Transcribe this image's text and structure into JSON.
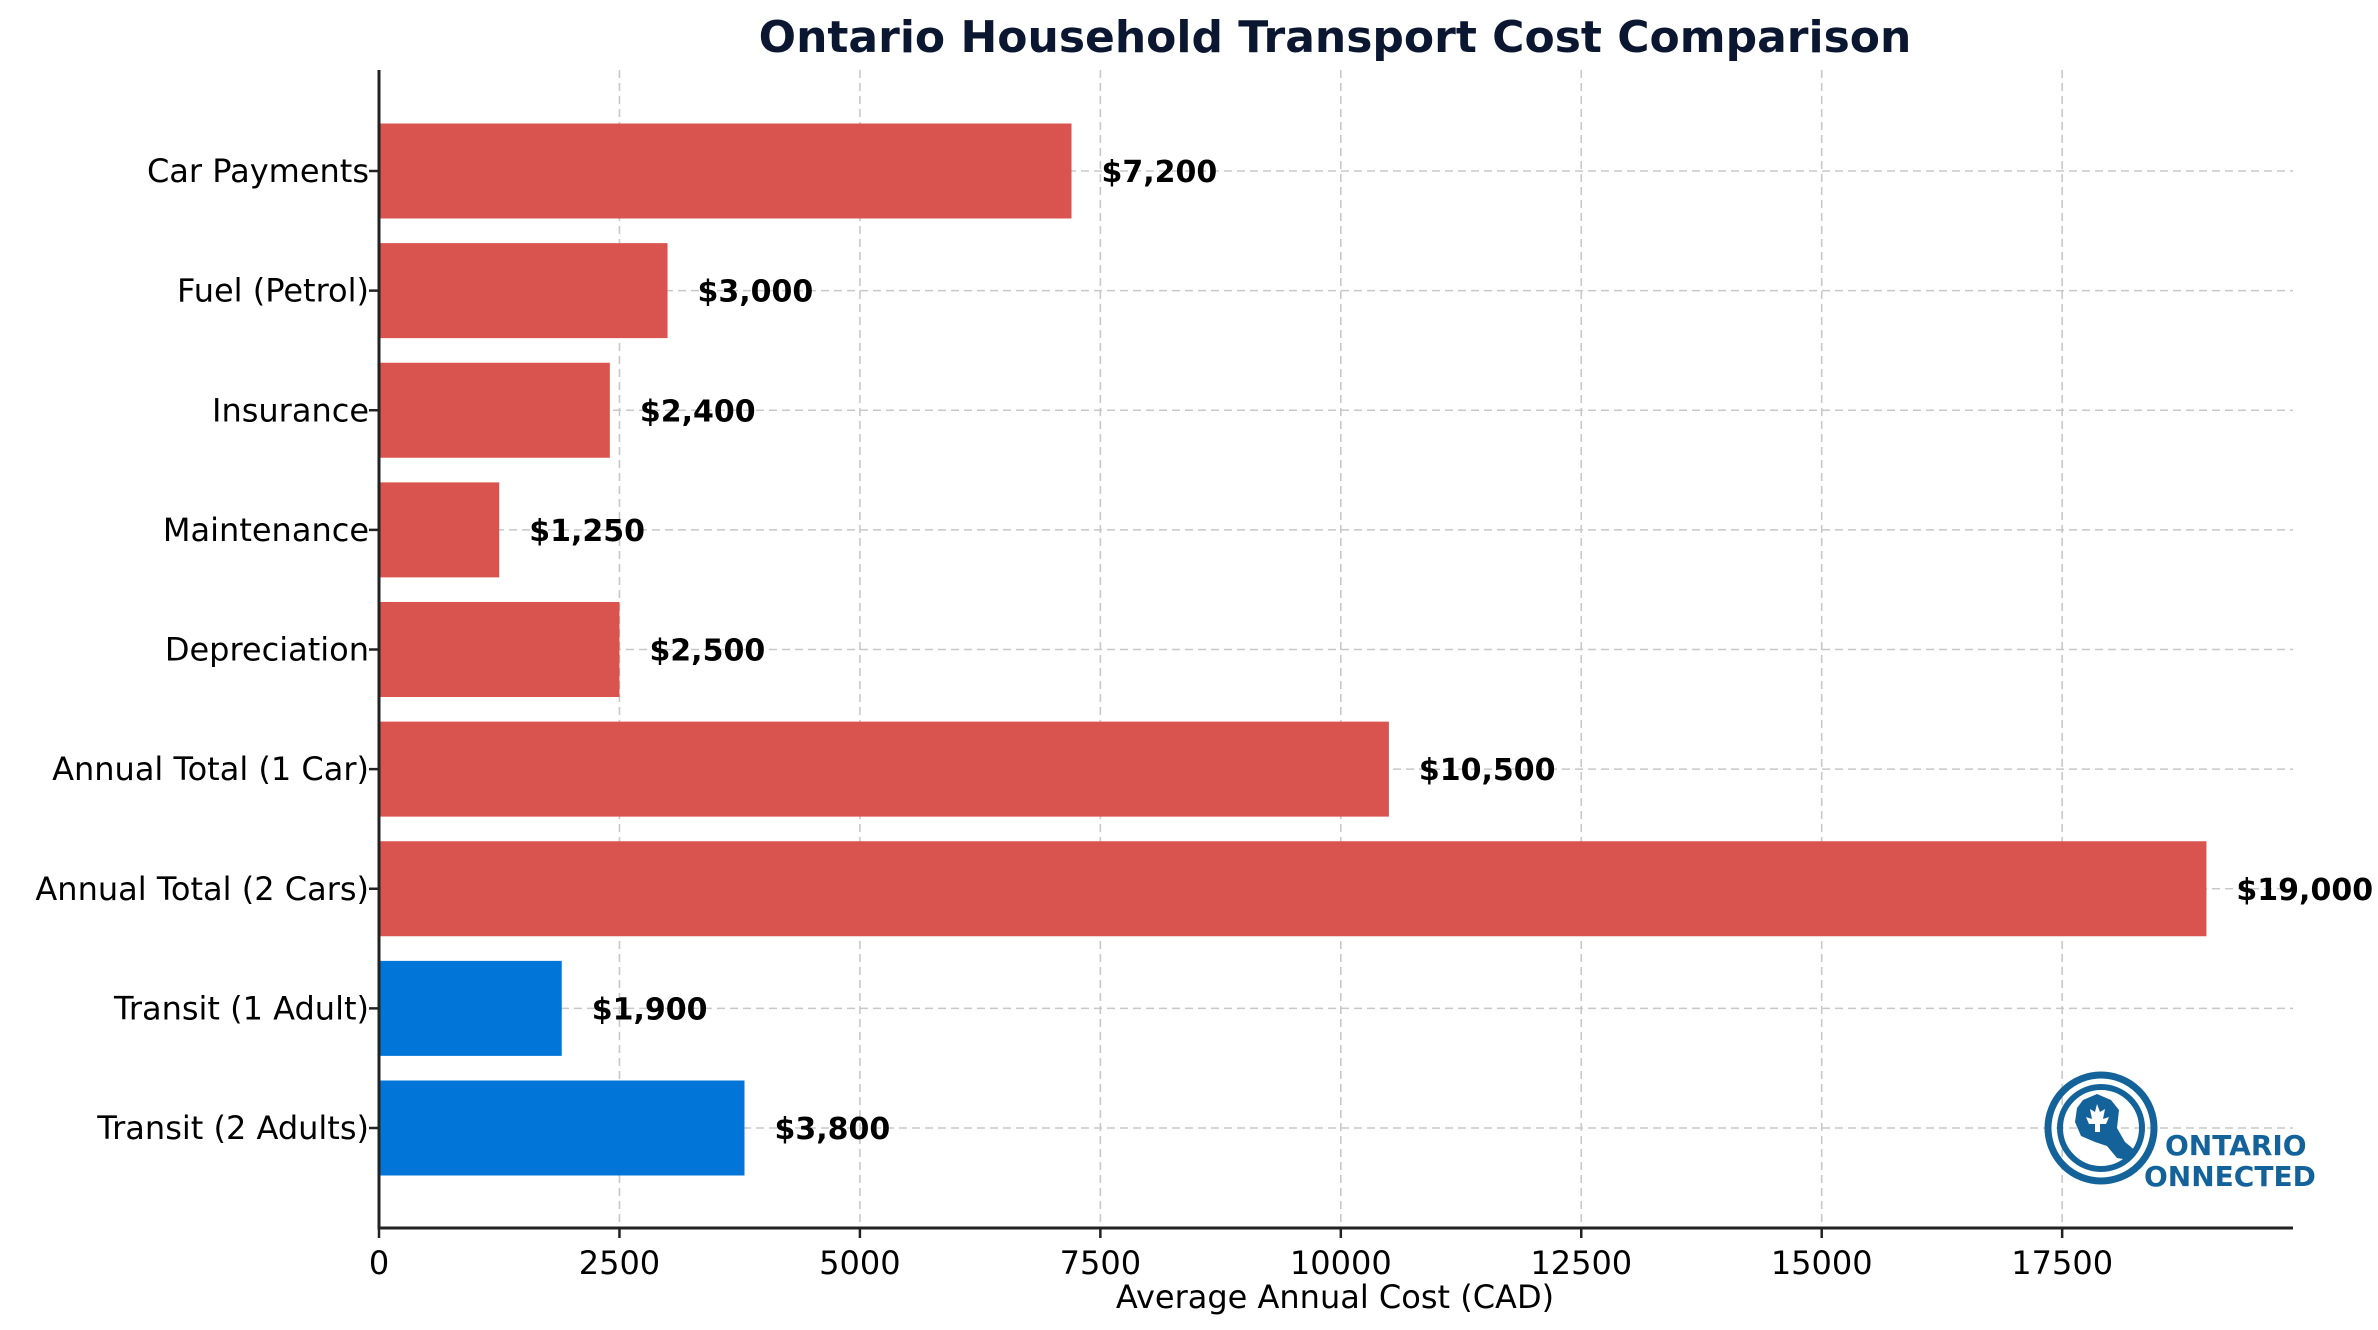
{
  "chart_data": {
    "type": "bar",
    "orientation": "horizontal",
    "title": "Ontario Household Transport Cost Comparison",
    "xlabel": "Average Annual Cost (CAD)",
    "ylabel": "",
    "xlim": [
      0,
      19900
    ],
    "xticks": [
      0,
      2500,
      5000,
      7500,
      10000,
      12500,
      15000,
      17500
    ],
    "grid": true,
    "categories": [
      "Car Payments",
      "Fuel (Petrol)",
      "Insurance",
      "Maintenance",
      "Depreciation",
      "Annual Total (1 Car)",
      "Annual Total (2 Cars)",
      "Transit (1 Adult)",
      "Transit (2 Adults)"
    ],
    "values": [
      7200,
      3000,
      2400,
      1250,
      2500,
      10500,
      19000,
      1900,
      3800
    ],
    "data_labels": [
      "$7,200",
      "$3,000",
      "$2,400",
      "$1,250",
      "$2,500",
      "$10,500",
      "$19,000",
      "$1,900",
      "$3,800"
    ],
    "groups": [
      "car",
      "car",
      "car",
      "car",
      "car",
      "car",
      "car",
      "transit",
      "transit"
    ],
    "colors": {
      "car": "#d9534f",
      "transit": "#0275d8"
    }
  },
  "logo": {
    "line1": "ONTARIO",
    "line2": "ONNECTED",
    "color": "#13639a"
  }
}
